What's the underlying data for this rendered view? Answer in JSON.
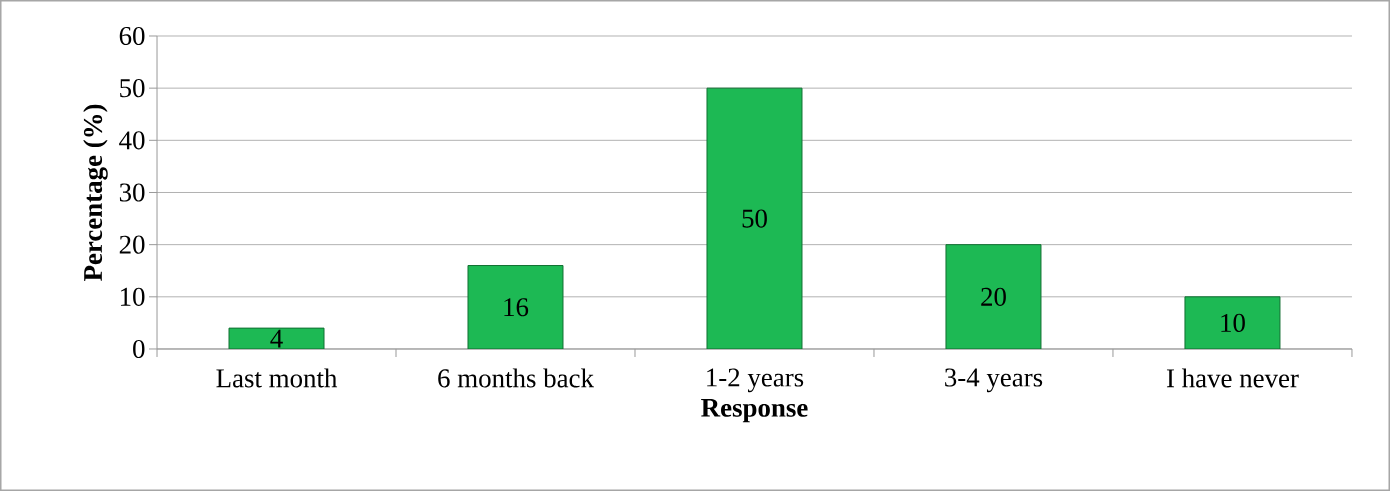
{
  "chart_data": {
    "type": "bar",
    "categories": [
      "Last month",
      "6 months back",
      "1-2 years",
      "3-4 years",
      "I have never"
    ],
    "values": [
      4,
      16,
      50,
      20,
      10
    ],
    "color": "#1db954",
    "xlabel": "Response",
    "ylabel": "Percentage (%)",
    "ylim": [
      0,
      60
    ],
    "yticks": [
      0,
      10,
      20,
      30,
      40,
      50,
      60
    ],
    "grid": "y",
    "data_labels": true
  }
}
